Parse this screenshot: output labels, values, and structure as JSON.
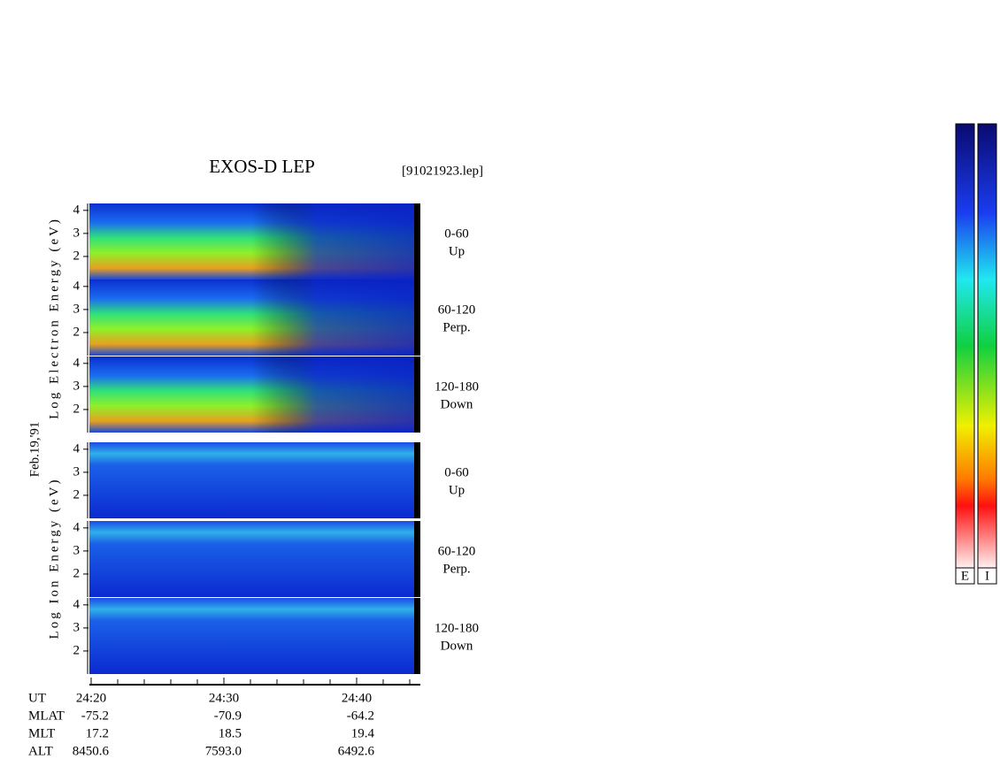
{
  "chart_data": {
    "type": "spectrogram",
    "title": "EXOS-D LEP",
    "file_label": "[91021923.lep]",
    "date_label": "Feb.19,'91",
    "groups": [
      {
        "ylabel": "Log Electron Energy (eV)",
        "panels": [
          {
            "angle": "0-60",
            "direction": "Up"
          },
          {
            "angle": "60-120",
            "direction": "Perp."
          },
          {
            "angle": "120-180",
            "direction": "Down"
          }
        ]
      },
      {
        "ylabel": "Log Ion Energy (eV)",
        "panels": [
          {
            "angle": "0-60",
            "direction": "Up"
          },
          {
            "angle": "60-120",
            "direction": "Perp."
          },
          {
            "angle": "120-180",
            "direction": "Down"
          }
        ]
      }
    ],
    "ylim": [
      1,
      4.3
    ],
    "yticks": [
      2,
      3,
      4
    ],
    "xlim": [
      19.9,
      44.8
    ],
    "xticks": [
      {
        "value": 20,
        "label": "24:20"
      },
      {
        "value": 30,
        "label": "24:30"
      },
      {
        "value": 40,
        "label": "24:40"
      }
    ],
    "minor_xticks": [
      22,
      24,
      26,
      28,
      32,
      34,
      36,
      38,
      42,
      44
    ],
    "orbit": {
      "time_label": "UT",
      "rows": [
        {
          "name": "MLAT",
          "values": [
            -75.2,
            -70.9,
            -64.2
          ]
        },
        {
          "name": "MLT",
          "values": [
            17.2,
            18.5,
            19.4
          ]
        },
        {
          "name": "ALT",
          "values": [
            8450.6,
            7593.0,
            6492.6
          ],
          "value_labels": [
            "8450.6",
            "7593.0",
            "6492.6"
          ]
        }
      ]
    },
    "colorbars": [
      "E",
      "I"
    ]
  }
}
